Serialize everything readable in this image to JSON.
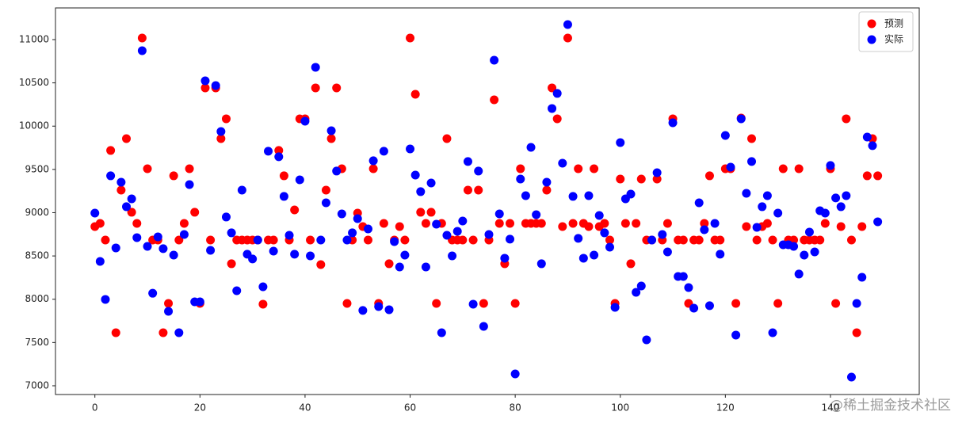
{
  "chart_data": {
    "type": "scatter",
    "x": [
      0,
      1,
      2,
      3,
      4,
      5,
      6,
      7,
      8,
      9,
      10,
      11,
      12,
      13,
      14,
      15,
      16,
      17,
      18,
      19,
      20,
      21,
      22,
      23,
      24,
      25,
      26,
      27,
      28,
      29,
      30,
      31,
      32,
      33,
      34,
      35,
      36,
      37,
      38,
      39,
      40,
      41,
      42,
      43,
      44,
      45,
      46,
      47,
      48,
      49,
      50,
      51,
      52,
      53,
      54,
      55,
      56,
      57,
      58,
      59,
      60,
      61,
      62,
      63,
      64,
      65,
      66,
      67,
      68,
      69,
      70,
      71,
      72,
      73,
      74,
      75,
      76,
      77,
      78,
      79,
      80,
      81,
      82,
      83,
      84,
      85,
      86,
      87,
      88,
      89,
      90,
      91,
      92,
      93,
      94,
      95,
      96,
      97,
      98,
      99,
      100,
      101,
      102,
      103,
      104,
      105,
      106,
      107,
      108,
      109,
      110,
      111,
      112,
      113,
      114,
      115,
      116,
      117,
      118,
      119,
      120,
      121,
      122,
      123,
      124,
      125,
      126,
      127,
      128,
      129,
      130,
      131,
      132,
      133,
      134,
      135,
      136,
      137,
      138,
      139,
      140,
      141,
      142,
      143,
      144,
      145,
      146,
      147,
      148,
      149
    ],
    "series": [
      {
        "name": "预测",
        "color": "#ff0000",
        "values": [
          8840,
          8876,
          8684,
          9719,
          7613,
          9261,
          9856,
          9005,
          8876,
          11018,
          9508,
          8684,
          8684,
          7613,
          7952,
          9426,
          8684,
          8876,
          9508,
          9005,
          7952,
          10442,
          8684,
          10442,
          9856,
          10085,
          8410,
          8684,
          8684,
          8684,
          8684,
          8684,
          7943,
          8684,
          8684,
          9719,
          9426,
          8684,
          9032,
          10085,
          10085,
          8684,
          10442,
          8400,
          9261,
          9856,
          10442,
          9508,
          7952,
          8684,
          8995,
          8840,
          8684,
          9508,
          7952,
          8876,
          8410,
          8684,
          8840,
          8684,
          11018,
          10368,
          9005,
          8876,
          9005,
          7952,
          8876,
          9856,
          8684,
          8684,
          8684,
          9261,
          8684,
          9261,
          7952,
          8684,
          10304,
          8876,
          8410,
          8876,
          7952,
          9508,
          8876,
          8876,
          8876,
          8876,
          9261,
          10442,
          10085,
          8840,
          11018,
          8876,
          9508,
          8876,
          8840,
          9508,
          8840,
          8876,
          8684,
          7952,
          9389,
          8876,
          8410,
          8876,
          9389,
          8684,
          8684,
          9389,
          8684,
          8876,
          10085,
          8684,
          8684,
          7952,
          8684,
          8684,
          8876,
          9426,
          8684,
          8684,
          9508,
          9508,
          7952,
          10094,
          8840,
          9856,
          8684,
          8840,
          8876,
          8684,
          7952,
          9508,
          8684,
          8684,
          9508,
          8684,
          8684,
          8684,
          8684,
          8876,
          9508,
          7952,
          8840,
          10085,
          8684,
          7613,
          8840,
          9426,
          9856,
          9426
        ]
      },
      {
        "name": "实际",
        "color": "#0000ff",
        "values": [
          8995,
          8437,
          7998,
          9426,
          8593,
          9352,
          9069,
          9160,
          8712,
          10872,
          8611,
          8069,
          8721,
          8584,
          7860,
          8510,
          7613,
          8748,
          9325,
          7970,
          7970,
          10524,
          8565,
          10469,
          9938,
          8950,
          8767,
          8098,
          9261,
          8520,
          8465,
          8684,
          8144,
          9710,
          8556,
          9646,
          9188,
          8739,
          8520,
          9380,
          10057,
          8501,
          10680,
          8684,
          9114,
          9947,
          9481,
          8986,
          8684,
          8767,
          8931,
          7870,
          8812,
          9600,
          7915,
          9710,
          7879,
          8666,
          8373,
          8510,
          9737,
          9435,
          9243,
          8373,
          9343,
          8867,
          7613,
          8739,
          8501,
          8785,
          8904,
          9591,
          7943,
          9481,
          7686,
          8748,
          10762,
          8986,
          8474,
          8694,
          7137,
          9389,
          9197,
          9755,
          8977,
          8410,
          9352,
          10204,
          10378,
          9572,
          11174,
          9188,
          8703,
          8474,
          9197,
          8510,
          8968,
          8767,
          8602,
          7906,
          9810,
          9160,
          9215,
          8080,
          8153,
          7531,
          8684,
          9462,
          8748,
          8547,
          10039,
          8263,
          8263,
          8135,
          7897,
          9114,
          8803,
          7925,
          8876,
          8520,
          9892,
          9526,
          7586,
          10085,
          9224,
          9591,
          8831,
          9069,
          9197,
          7613,
          8995,
          8629,
          8629,
          8611,
          8291,
          8510,
          8776,
          8547,
          9023,
          8995,
          9545,
          9170,
          9069,
          9197,
          7100,
          7952,
          8254,
          9874,
          9774,
          8895
        ]
      }
    ],
    "xlim": [
      -7.5,
      156.9
    ],
    "xticks": [
      0,
      20,
      40,
      60,
      80,
      100,
      120,
      140
    ],
    "ylim": [
      6899,
      11366
    ],
    "yticks": [
      7000,
      7500,
      8000,
      8500,
      9000,
      9500,
      10000,
      10500,
      11000
    ],
    "legend": "upper right"
  },
  "watermark": "@稀土掘金技术社区"
}
